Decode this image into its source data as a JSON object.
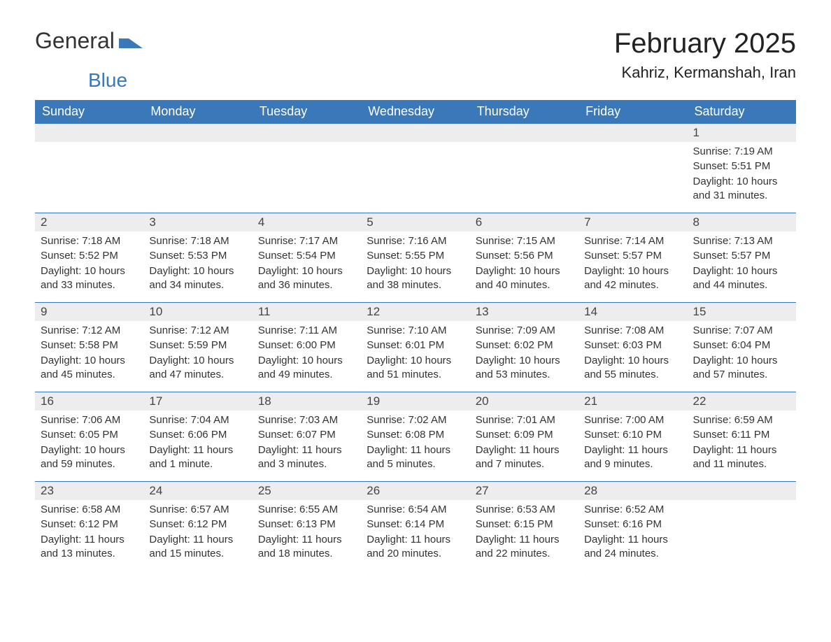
{
  "logo": {
    "text1": "General",
    "text2": "Blue",
    "icon_color": "#3a78b9"
  },
  "title": "February 2025",
  "location": "Kahriz, Kermanshah, Iran",
  "colors": {
    "header_bg": "#3a78b9",
    "header_text": "#ffffff",
    "daynum_bg": "#ededed",
    "border": "#3a78b9",
    "body_text": "#333333"
  },
  "weekdays": [
    "Sunday",
    "Monday",
    "Tuesday",
    "Wednesday",
    "Thursday",
    "Friday",
    "Saturday"
  ],
  "grid": {
    "rows": 5,
    "cols": 7,
    "leading_blanks": 6,
    "days": [
      {
        "n": 1,
        "sunrise": "7:19 AM",
        "sunset": "5:51 PM",
        "daylight": "10 hours and 31 minutes."
      },
      {
        "n": 2,
        "sunrise": "7:18 AM",
        "sunset": "5:52 PM",
        "daylight": "10 hours and 33 minutes."
      },
      {
        "n": 3,
        "sunrise": "7:18 AM",
        "sunset": "5:53 PM",
        "daylight": "10 hours and 34 minutes."
      },
      {
        "n": 4,
        "sunrise": "7:17 AM",
        "sunset": "5:54 PM",
        "daylight": "10 hours and 36 minutes."
      },
      {
        "n": 5,
        "sunrise": "7:16 AM",
        "sunset": "5:55 PM",
        "daylight": "10 hours and 38 minutes."
      },
      {
        "n": 6,
        "sunrise": "7:15 AM",
        "sunset": "5:56 PM",
        "daylight": "10 hours and 40 minutes."
      },
      {
        "n": 7,
        "sunrise": "7:14 AM",
        "sunset": "5:57 PM",
        "daylight": "10 hours and 42 minutes."
      },
      {
        "n": 8,
        "sunrise": "7:13 AM",
        "sunset": "5:57 PM",
        "daylight": "10 hours and 44 minutes."
      },
      {
        "n": 9,
        "sunrise": "7:12 AM",
        "sunset": "5:58 PM",
        "daylight": "10 hours and 45 minutes."
      },
      {
        "n": 10,
        "sunrise": "7:12 AM",
        "sunset": "5:59 PM",
        "daylight": "10 hours and 47 minutes."
      },
      {
        "n": 11,
        "sunrise": "7:11 AM",
        "sunset": "6:00 PM",
        "daylight": "10 hours and 49 minutes."
      },
      {
        "n": 12,
        "sunrise": "7:10 AM",
        "sunset": "6:01 PM",
        "daylight": "10 hours and 51 minutes."
      },
      {
        "n": 13,
        "sunrise": "7:09 AM",
        "sunset": "6:02 PM",
        "daylight": "10 hours and 53 minutes."
      },
      {
        "n": 14,
        "sunrise": "7:08 AM",
        "sunset": "6:03 PM",
        "daylight": "10 hours and 55 minutes."
      },
      {
        "n": 15,
        "sunrise": "7:07 AM",
        "sunset": "6:04 PM",
        "daylight": "10 hours and 57 minutes."
      },
      {
        "n": 16,
        "sunrise": "7:06 AM",
        "sunset": "6:05 PM",
        "daylight": "10 hours and 59 minutes."
      },
      {
        "n": 17,
        "sunrise": "7:04 AM",
        "sunset": "6:06 PM",
        "daylight": "11 hours and 1 minute."
      },
      {
        "n": 18,
        "sunrise": "7:03 AM",
        "sunset": "6:07 PM",
        "daylight": "11 hours and 3 minutes."
      },
      {
        "n": 19,
        "sunrise": "7:02 AM",
        "sunset": "6:08 PM",
        "daylight": "11 hours and 5 minutes."
      },
      {
        "n": 20,
        "sunrise": "7:01 AM",
        "sunset": "6:09 PM",
        "daylight": "11 hours and 7 minutes."
      },
      {
        "n": 21,
        "sunrise": "7:00 AM",
        "sunset": "6:10 PM",
        "daylight": "11 hours and 9 minutes."
      },
      {
        "n": 22,
        "sunrise": "6:59 AM",
        "sunset": "6:11 PM",
        "daylight": "11 hours and 11 minutes."
      },
      {
        "n": 23,
        "sunrise": "6:58 AM",
        "sunset": "6:12 PM",
        "daylight": "11 hours and 13 minutes."
      },
      {
        "n": 24,
        "sunrise": "6:57 AM",
        "sunset": "6:12 PM",
        "daylight": "11 hours and 15 minutes."
      },
      {
        "n": 25,
        "sunrise": "6:55 AM",
        "sunset": "6:13 PM",
        "daylight": "11 hours and 18 minutes."
      },
      {
        "n": 26,
        "sunrise": "6:54 AM",
        "sunset": "6:14 PM",
        "daylight": "11 hours and 20 minutes."
      },
      {
        "n": 27,
        "sunrise": "6:53 AM",
        "sunset": "6:15 PM",
        "daylight": "11 hours and 22 minutes."
      },
      {
        "n": 28,
        "sunrise": "6:52 AM",
        "sunset": "6:16 PM",
        "daylight": "11 hours and 24 minutes."
      }
    ]
  },
  "labels": {
    "sunrise": "Sunrise:",
    "sunset": "Sunset:",
    "daylight": "Daylight:"
  }
}
